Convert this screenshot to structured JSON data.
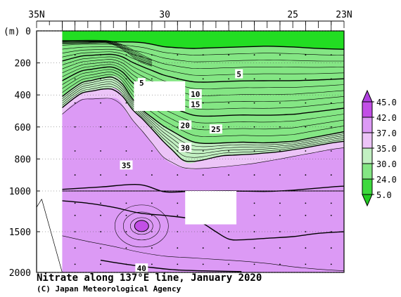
{
  "chart_data": {
    "type": "heatmap",
    "title": "Nitrate along 137°E line, January 2020",
    "credit": "(C) Japan Meteorological Agency",
    "ylabel": "(m)",
    "x_ticks": [
      "35N",
      "30",
      "25",
      "23N"
    ],
    "x_tick_values": [
      35,
      30,
      25,
      23
    ],
    "xlim": [
      35,
      23
    ],
    "y_ticks_upper": [
      "0",
      "200",
      "400",
      "600",
      "800",
      "1000"
    ],
    "y_ticks_lower": [
      "1500",
      "2000"
    ],
    "y_tick_values": [
      0,
      200,
      400,
      600,
      800,
      1000,
      1500,
      2000
    ],
    "ylim": [
      0,
      2000
    ],
    "y_axis_break_at": 1000,
    "y_scale_note": "0–1000 m and 1000–2000 m sections use different scales",
    "colorbar": {
      "levels": [
        "45.0",
        "42.0",
        "37.0",
        "35.0",
        "30.0",
        "24.0",
        "5.0"
      ],
      "colors": [
        "#c24fe6",
        "#dc9af5",
        "#ecc4f7",
        "#c2f0c2",
        "#84e684",
        "#3dd93d"
      ],
      "extend": "both",
      "top_arrow_color": "#b040e0",
      "bottom_arrow_color": "#22cc22"
    },
    "contour_labels": [
      {
        "text": "5",
        "lat": 27.1,
        "depth": 270
      },
      {
        "text": "5",
        "lat": 30.9,
        "depth": 325
      },
      {
        "text": "10",
        "lat": 28.8,
        "depth": 395
      },
      {
        "text": "15",
        "lat": 28.8,
        "depth": 458
      },
      {
        "text": "20",
        "lat": 29.2,
        "depth": 590
      },
      {
        "text": "25",
        "lat": 28.0,
        "depth": 615
      },
      {
        "text": "30",
        "lat": 29.2,
        "depth": 730
      },
      {
        "text": "35",
        "lat": 31.5,
        "depth": 840
      },
      {
        "text": "40",
        "lat": 30.9,
        "depth": 1950
      }
    ],
    "masked_regions": [
      {
        "lat_from": 35.0,
        "lat_to": 34.0,
        "depth_from": 0,
        "depth_to": 2000
      },
      {
        "lat_from": 31.2,
        "lat_to": 29.2,
        "depth_from": 315,
        "depth_to": 500
      },
      {
        "lat_from": 29.2,
        "lat_to": 27.2,
        "depth_from": 1000,
        "depth_to": 1410
      }
    ],
    "zones": [
      {
        "range": "< 24",
        "color": "#22dd22"
      },
      {
        "range": "24–30",
        "color": "#84e684"
      },
      {
        "range": "30–35",
        "color": "#c2f0c2"
      },
      {
        "range": "35–37",
        "color": "#ecc4f7"
      },
      {
        "range": "37–42",
        "color": "#dc9af5"
      },
      {
        "range": "> 45",
        "color": "#c24fe6"
      }
    ],
    "boundaries": [
      {
        "name": "24",
        "points": [
          [
            34,
            65
          ],
          [
            33,
            65
          ],
          [
            32,
            68
          ],
          [
            31,
            70
          ],
          [
            30.6,
            80
          ],
          [
            30,
            100
          ],
          [
            29,
            110
          ],
          [
            28,
            105
          ],
          [
            27,
            100
          ],
          [
            26,
            95
          ],
          [
            25,
            100
          ],
          [
            24,
            110
          ],
          [
            23,
            115
          ]
        ]
      },
      {
        "name": "30",
        "points": [
          [
            34,
            410
          ],
          [
            33.3,
            325
          ],
          [
            32.3,
            290
          ],
          [
            31.8,
            290
          ],
          [
            31.4,
            400
          ],
          [
            30.8,
            505
          ],
          [
            30,
            600
          ],
          [
            29,
            690
          ],
          [
            28.4,
            705
          ],
          [
            27.8,
            700
          ],
          [
            27,
            695
          ],
          [
            26,
            700
          ],
          [
            25,
            690
          ],
          [
            24,
            660
          ],
          [
            23,
            630
          ]
        ]
      },
      {
        "name": "35",
        "points": [
          [
            34,
            480
          ],
          [
            33.3,
            390
          ],
          [
            32.3,
            360
          ],
          [
            31.8,
            370
          ],
          [
            31.4,
            470
          ],
          [
            30.8,
            560
          ],
          [
            30,
            700
          ],
          [
            29.2,
            820
          ],
          [
            28.6,
            810
          ],
          [
            27.8,
            780
          ],
          [
            26.6,
            770
          ],
          [
            25.5,
            755
          ],
          [
            24.5,
            730
          ],
          [
            23.5,
            700
          ],
          [
            23,
            690
          ]
        ]
      },
      {
        "name": "37",
        "points": [
          [
            34,
            520
          ],
          [
            33.3,
            430
          ],
          [
            32.3,
            420
          ],
          [
            31.8,
            430
          ],
          [
            31.4,
            530
          ],
          [
            30.8,
            640
          ],
          [
            30,
            800
          ],
          [
            29.2,
            860
          ],
          [
            28.6,
            860
          ],
          [
            27.8,
            850
          ],
          [
            26.6,
            830
          ],
          [
            25.5,
            800
          ],
          [
            24.5,
            770
          ],
          [
            23.5,
            740
          ],
          [
            23,
            730
          ]
        ]
      }
    ],
    "deep_blob": {
      "label": "> 45",
      "lat": 30.9,
      "depth": 1430
    }
  }
}
